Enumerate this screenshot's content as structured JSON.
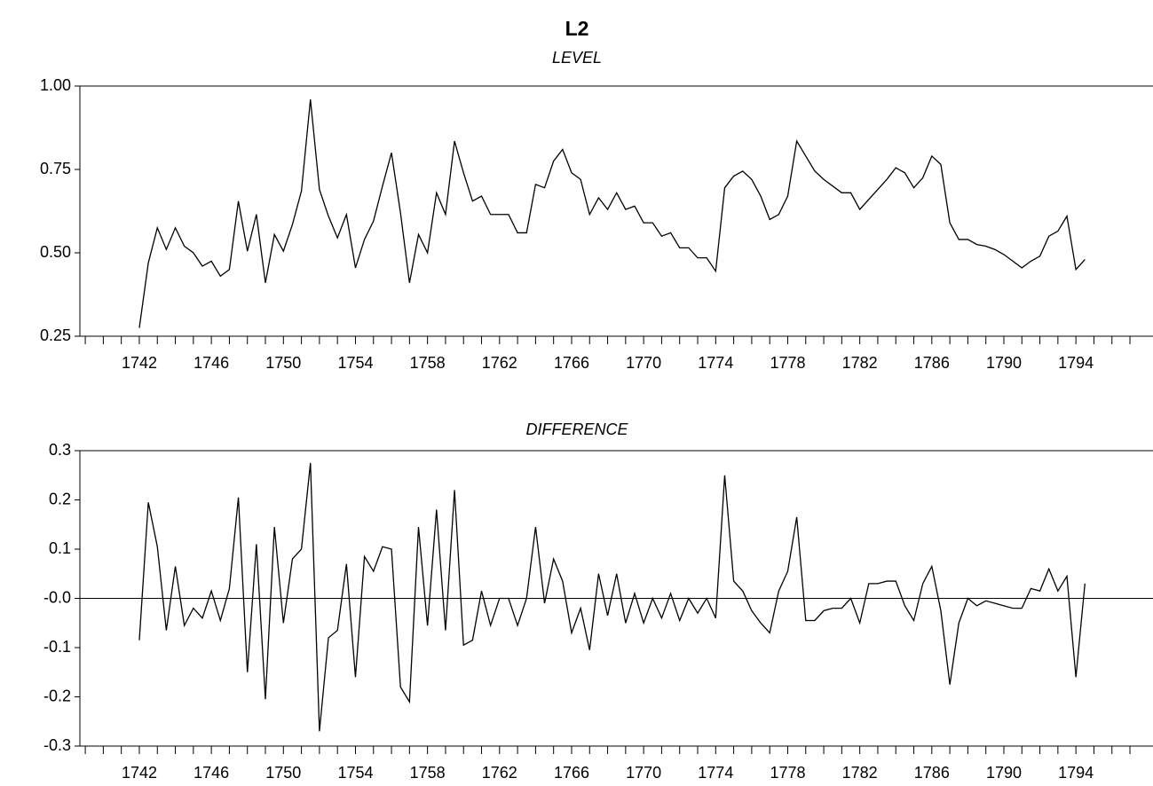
{
  "title": "L2",
  "chart_data": [
    {
      "type": "line",
      "title": "LEVEL",
      "x": [
        1742,
        1742.5,
        1743,
        1743.5,
        1744,
        1744.5,
        1745,
        1745.5,
        1746,
        1746.5,
        1747,
        1747.5,
        1748,
        1748.5,
        1749,
        1749.5,
        1750,
        1750.5,
        1751,
        1751.5,
        1752,
        1752.5,
        1753,
        1753.5,
        1754,
        1754.5,
        1755,
        1755.5,
        1756,
        1756.5,
        1757,
        1757.5,
        1758,
        1758.5,
        1759,
        1759.5,
        1760,
        1760.5,
        1761,
        1761.5,
        1762,
        1762.5,
        1763,
        1763.5,
        1764,
        1764.5,
        1765,
        1765.5,
        1766,
        1766.5,
        1767,
        1767.5,
        1768,
        1768.5,
        1769,
        1769.5,
        1770,
        1770.5,
        1771,
        1771.5,
        1772,
        1772.5,
        1773,
        1773.5,
        1774,
        1774.5,
        1775,
        1775.5,
        1776,
        1776.5,
        1777,
        1777.5,
        1778,
        1778.5,
        1779,
        1779.5,
        1780,
        1780.5,
        1781,
        1781.5,
        1782,
        1782.5,
        1783,
        1783.5,
        1784,
        1784.5,
        1785,
        1785.5,
        1786,
        1786.5,
        1787,
        1787.5,
        1788,
        1788.5,
        1789,
        1789.5,
        1790,
        1790.5,
        1791,
        1791.5,
        1792,
        1792.5,
        1793,
        1793.5,
        1794,
        1794.5
      ],
      "series": [
        {
          "color": "#000000",
          "values": [
            0.275,
            0.47,
            0.575,
            0.51,
            0.575,
            0.52,
            0.5,
            0.46,
            0.475,
            0.43,
            0.45,
            0.655,
            0.505,
            0.615,
            0.41,
            0.555,
            0.505,
            0.585,
            0.685,
            0.96,
            0.69,
            0.61,
            0.545,
            0.615,
            0.455,
            0.54,
            0.595,
            0.7,
            0.8,
            0.62,
            0.41,
            0.555,
            0.5,
            0.68,
            0.615,
            0.835,
            0.74,
            0.655,
            0.67,
            0.615,
            0.615,
            0.615,
            0.56,
            0.56,
            0.705,
            0.695,
            0.775,
            0.81,
            0.74,
            0.72,
            0.615,
            0.665,
            0.63,
            0.68,
            0.63,
            0.64,
            0.59,
            0.59,
            0.55,
            0.56,
            0.515,
            0.515,
            0.485,
            0.485,
            0.445,
            0.695,
            0.73,
            0.745,
            0.72,
            0.67,
            0.6,
            0.615,
            0.67,
            0.835,
            0.79,
            0.745,
            0.72,
            0.7,
            0.68,
            0.68,
            0.63,
            0.66,
            0.69,
            0.72,
            0.755,
            0.74,
            0.695,
            0.725,
            0.79,
            0.765,
            0.59,
            0.54,
            0.54,
            0.525,
            0.52,
            0.51,
            0.495,
            0.475,
            0.455,
            0.475,
            0.49,
            0.55,
            0.565,
            0.61,
            0.45,
            0.48
          ]
        }
      ],
      "xlim": [
        1738.7,
        1798.28
      ],
      "xticks": [
        1742,
        1746,
        1750,
        1754,
        1758,
        1762,
        1766,
        1770,
        1774,
        1778,
        1782,
        1786,
        1790,
        1794
      ],
      "ylim": [
        0.25,
        1.0
      ],
      "yticks": [
        {
          "value": 1.0,
          "label": "1.00"
        },
        0.75,
        {
          "value": 0.5,
          "label": "0.50"
        },
        0.25
      ],
      "zero_line": false
    },
    {
      "type": "line",
      "title": "DIFFERENCE",
      "x": [
        1742,
        1742.5,
        1743,
        1743.5,
        1744,
        1744.5,
        1745,
        1745.5,
        1746,
        1746.5,
        1747,
        1747.5,
        1748,
        1748.5,
        1749,
        1749.5,
        1750,
        1750.5,
        1751,
        1751.5,
        1752,
        1752.5,
        1753,
        1753.5,
        1754,
        1754.5,
        1755,
        1755.5,
        1756,
        1756.5,
        1757,
        1757.5,
        1758,
        1758.5,
        1759,
        1759.5,
        1760,
        1760.5,
        1761,
        1761.5,
        1762,
        1762.5,
        1763,
        1763.5,
        1764,
        1764.5,
        1765,
        1765.5,
        1766,
        1766.5,
        1767,
        1767.5,
        1768,
        1768.5,
        1769,
        1769.5,
        1770,
        1770.5,
        1771,
        1771.5,
        1772,
        1772.5,
        1773,
        1773.5,
        1774,
        1774.5,
        1775,
        1775.5,
        1776,
        1776.5,
        1777,
        1777.5,
        1778,
        1778.5,
        1779,
        1779.5,
        1780,
        1780.5,
        1781,
        1781.5,
        1782,
        1782.5,
        1783,
        1783.5,
        1784,
        1784.5,
        1785,
        1785.5,
        1786,
        1786.5,
        1787,
        1787.5,
        1788,
        1788.5,
        1789,
        1789.5,
        1790,
        1790.5,
        1791,
        1791.5,
        1792,
        1792.5,
        1793,
        1793.5,
        1794,
        1794.5
      ],
      "series": [
        {
          "color": "#000000",
          "values": [
            -0.085,
            0.195,
            0.105,
            -0.065,
            0.065,
            -0.055,
            -0.02,
            -0.04,
            0.015,
            -0.045,
            0.02,
            0.205,
            -0.15,
            0.11,
            -0.205,
            0.145,
            -0.05,
            0.08,
            0.1,
            0.275,
            -0.27,
            -0.08,
            -0.065,
            0.07,
            -0.16,
            0.085,
            0.055,
            0.105,
            0.1,
            -0.18,
            -0.21,
            0.145,
            -0.055,
            0.18,
            -0.065,
            0.22,
            -0.095,
            -0.085,
            0.015,
            -0.055,
            0.0,
            0.0,
            -0.055,
            0.0,
            0.145,
            -0.01,
            0.08,
            0.035,
            -0.07,
            -0.02,
            -0.105,
            0.05,
            -0.035,
            0.05,
            -0.05,
            0.01,
            -0.05,
            0.0,
            -0.04,
            0.01,
            -0.045,
            0.0,
            -0.03,
            0.0,
            -0.04,
            0.25,
            0.035,
            0.015,
            -0.025,
            -0.05,
            -0.07,
            0.015,
            0.055,
            0.165,
            -0.045,
            -0.045,
            -0.025,
            -0.02,
            -0.02,
            0.0,
            -0.05,
            0.03,
            0.03,
            0.035,
            0.035,
            -0.015,
            -0.045,
            0.03,
            0.065,
            -0.025,
            -0.175,
            -0.05,
            0.0,
            -0.015,
            -0.005,
            -0.01,
            -0.015,
            -0.02,
            -0.02,
            0.02,
            0.015,
            0.06,
            0.015,
            0.045,
            -0.16,
            0.03
          ]
        }
      ],
      "xlim": [
        1738.7,
        1798.28
      ],
      "xticks": [
        1742,
        1746,
        1750,
        1754,
        1758,
        1762,
        1766,
        1770,
        1774,
        1778,
        1782,
        1786,
        1790,
        1794
      ],
      "ylim": [
        -0.3,
        0.3
      ],
      "yticks": [
        0.3,
        0.2,
        0.1,
        {
          "value": 0,
          "label": "-0.0"
        },
        -0.1,
        -0.2,
        -0.3
      ],
      "zero_line": true
    }
  ]
}
